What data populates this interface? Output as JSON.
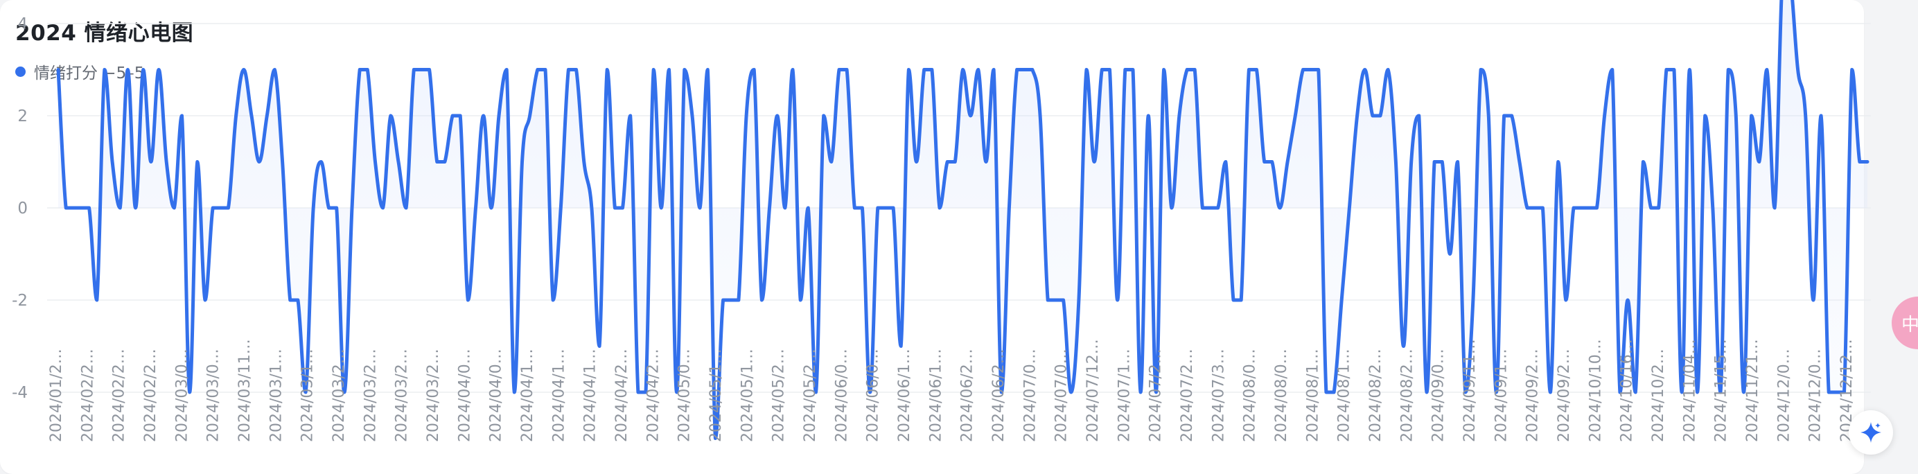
{
  "title": "2024 情绪心电图",
  "legend_label": "情绪打分 −5–5",
  "side_bubble_text": "中",
  "ai_button_icon": "sparkle-icon",
  "colors": {
    "line": "#3370eb",
    "area_top": "#c9d9fb",
    "area_bottom": "#eef3fe",
    "grid": "#ebedf0",
    "tick_text": "#8f959e"
  },
  "chart_data": {
    "type": "line",
    "title": "2024 情绪心电图",
    "xlabel": "",
    "ylabel": "",
    "ylim": [
      -5,
      5
    ],
    "yticks": [
      4,
      2,
      0,
      -2,
      -4
    ],
    "grid": true,
    "legend": "top-left",
    "smooth": true,
    "x_ticks": [
      "2024/01/2…",
      "2024/02/2…",
      "2024/02/2…",
      "2024/02/2…",
      "2024/03/0…",
      "2024/03/0…",
      "2024/03/11…",
      "2024/03/1…",
      "2024/03/1…",
      "2024/03/2…",
      "2024/03/2…",
      "2024/03/2…",
      "2024/03/2…",
      "2024/04/0…",
      "2024/04/0…",
      "2024/04/1…",
      "2024/04/1…",
      "2024/04/1…",
      "2024/04/2…",
      "2024/04/2…",
      "2024/05/0…",
      "2024/05/1…",
      "2024/05/1…",
      "2024/05/2…",
      "2024/05/2…",
      "2024/06/0…",
      "2024/06/0…",
      "2024/06/1…",
      "2024/06/1…",
      "2024/06/2…",
      "2024/06/2…",
      "2024/07/0…",
      "2024/07/0…",
      "2024/07/12…",
      "2024/07/1…",
      "2024/07/2…",
      "2024/07/2…",
      "2024/07/3…",
      "2024/08/0…",
      "2024/08/0…",
      "2024/08/1…",
      "2024/08/1…",
      "2024/08/2…",
      "2024/08/2…",
      "2024/09/0…",
      "2024/09/11…",
      "2024/09/1…",
      "2024/09/2…",
      "2024/09/2…",
      "2024/10/10…",
      "2024/10/16…",
      "2024/10/2…",
      "2024/11/04…",
      "2024/11/15…",
      "2024/11/21…",
      "2024/12/0…",
      "2024/12/0…",
      "2024/12/12…"
    ],
    "series": [
      {
        "name": "情绪打分 −5–5",
        "values": [
          3,
          0,
          0,
          0,
          0,
          -2,
          3,
          1,
          0,
          3,
          0,
          3,
          1,
          3,
          1,
          0,
          2,
          -4,
          1,
          -2,
          0,
          0,
          0,
          2,
          3,
          2,
          1,
          2,
          3,
          1,
          -2,
          -2,
          -4,
          0,
          1,
          0,
          0,
          -4,
          0,
          3,
          3,
          1,
          0,
          2,
          1,
          0,
          3,
          3,
          3,
          1,
          1,
          2,
          2,
          -2,
          0,
          2,
          0,
          2,
          3,
          -4,
          1,
          2,
          3,
          3,
          -2,
          0,
          3,
          3,
          1,
          0,
          -3,
          3,
          0,
          0,
          2,
          -4,
          -4,
          3,
          0,
          3,
          -4,
          3,
          2,
          0,
          3,
          -5,
          -2,
          -2,
          -2,
          2,
          3,
          -2,
          0,
          2,
          0,
          3,
          -2,
          0,
          -4,
          2,
          1,
          3,
          3,
          0,
          0,
          -4,
          0,
          0,
          0,
          -3,
          3,
          1,
          3,
          3,
          0,
          1,
          1,
          3,
          2,
          3,
          1,
          3,
          -4,
          0,
          3,
          3,
          3,
          2,
          -2,
          -2,
          -2,
          -4,
          -2,
          3,
          1,
          3,
          3,
          -2,
          3,
          3,
          -4,
          2,
          -4,
          3,
          0,
          2,
          3,
          3,
          0,
          0,
          0,
          1,
          -2,
          -2,
          3,
          3,
          1,
          1,
          0,
          1,
          2,
          3,
          3,
          3,
          -4,
          -4,
          -2,
          0,
          2,
          3,
          2,
          2,
          3,
          1,
          -3,
          1,
          2,
          -4,
          1,
          1,
          -1,
          1,
          -4,
          -2,
          3,
          2,
          -4,
          2,
          2,
          1,
          0,
          0,
          0,
          -4,
          1,
          -2,
          0,
          0,
          0,
          0,
          2,
          3,
          -4,
          -2,
          -4,
          1,
          0,
          0,
          3,
          3,
          -4,
          3,
          -4,
          2,
          0,
          -4,
          3,
          2,
          -4,
          2,
          1,
          3,
          0,
          5,
          5,
          3,
          2,
          -2,
          2,
          -4,
          -4,
          -4,
          3,
          1,
          1
        ]
      }
    ]
  }
}
